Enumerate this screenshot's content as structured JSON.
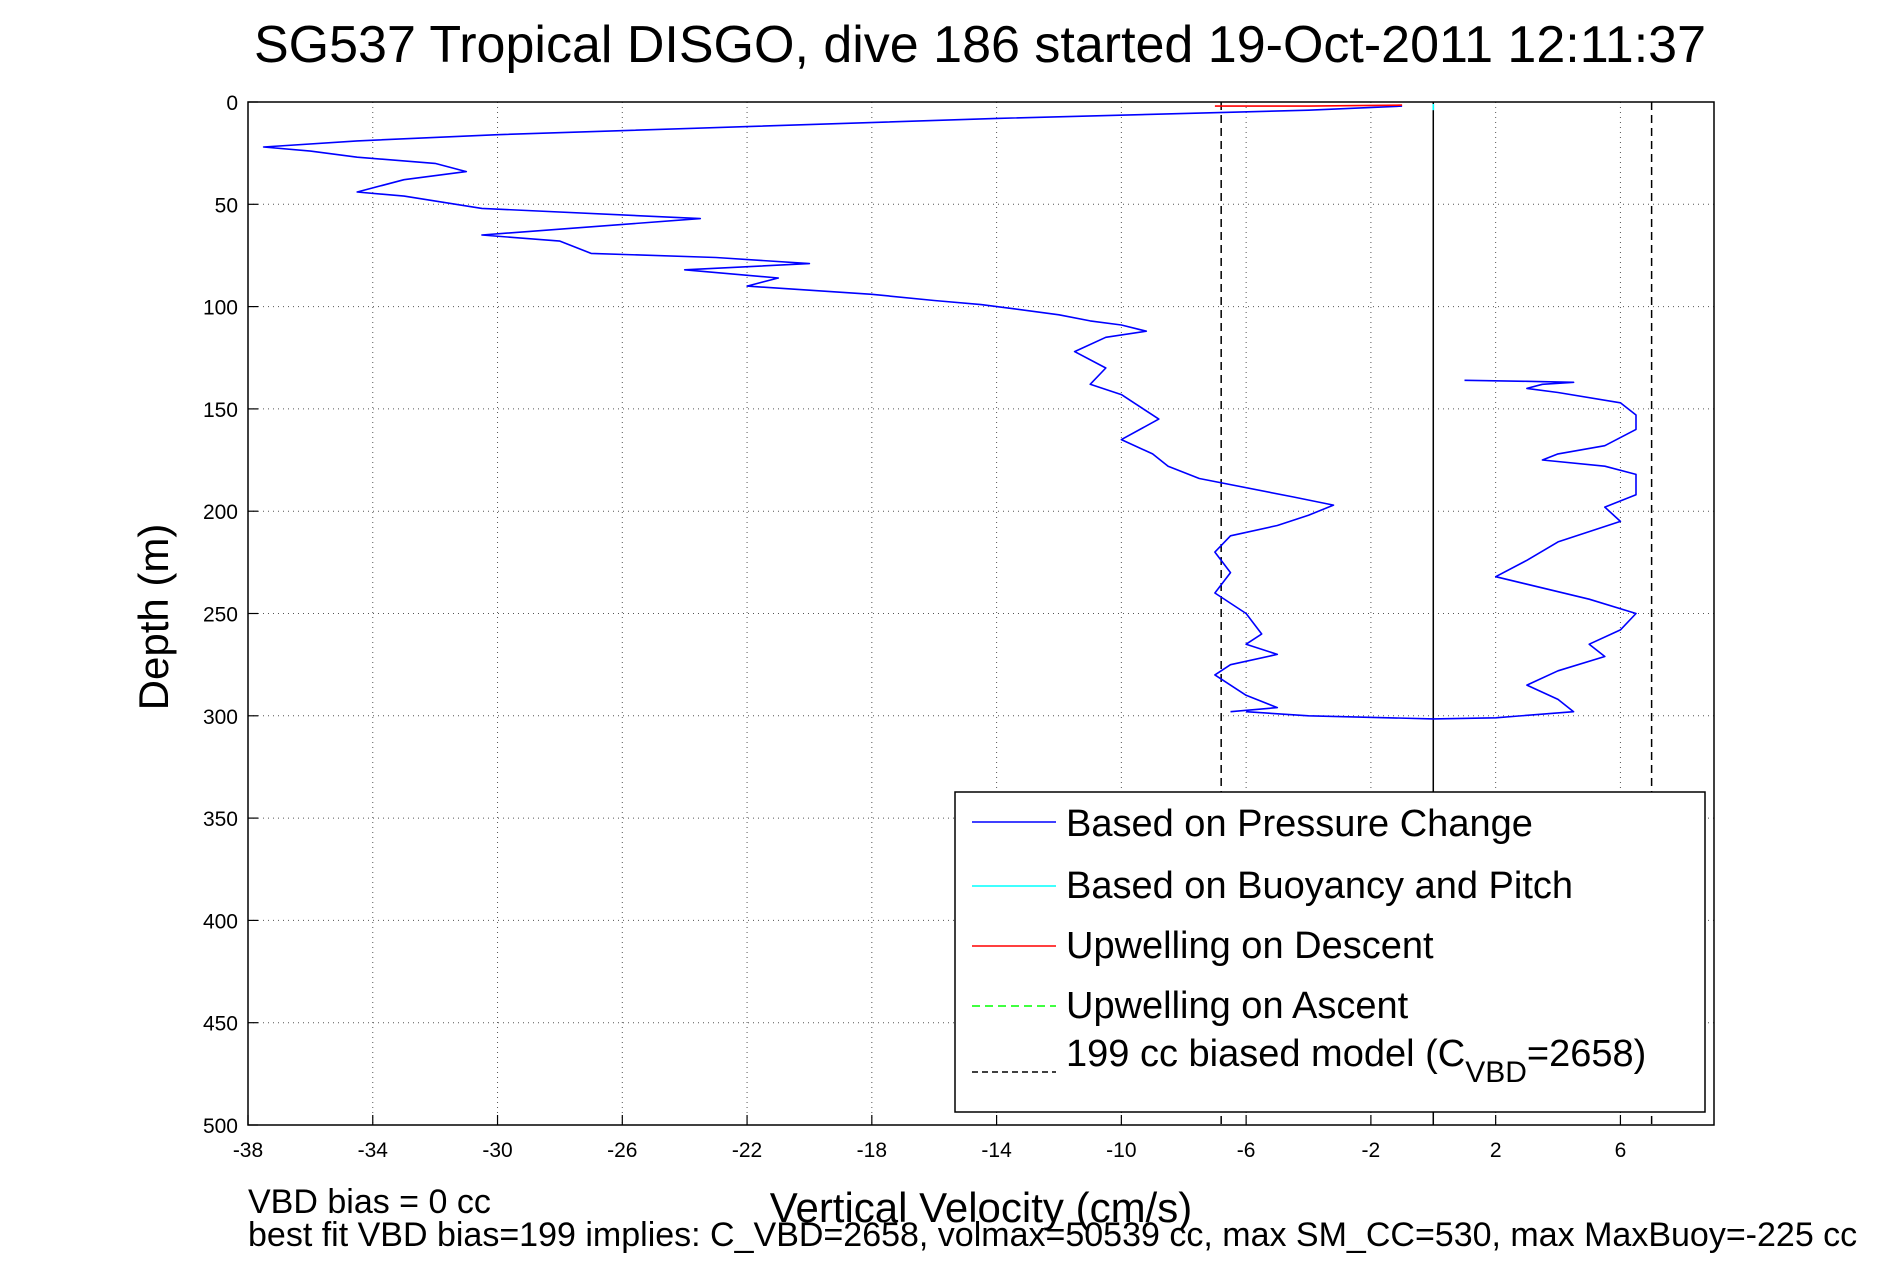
{
  "chart_data": {
    "type": "line",
    "title": "SG537 Tropical DISGO, dive 186 started 19-Oct-2011 12:11:37",
    "xlabel": "Vertical Velocity (cm/s)",
    "ylabel": "Depth (m)",
    "xlim": [
      -38,
      9
    ],
    "ylim": [
      0,
      500
    ],
    "y_reversed": true,
    "grid": true,
    "x_ticks": [
      -38,
      -34,
      -30,
      -26,
      -22,
      -18,
      -14,
      -10,
      -6,
      -2,
      2,
      6
    ],
    "y_ticks": [
      0,
      50,
      100,
      150,
      200,
      250,
      300,
      350,
      400,
      450,
      500
    ],
    "legend_position": "bottom-right",
    "colors": {
      "pressure": "#0000ff",
      "buoyancy": "#00ffff",
      "upwelling_descent": "#ff0000",
      "upwelling_ascent": "#00ff00",
      "model": "#000000"
    },
    "series": [
      {
        "name": "Based on Pressure Change",
        "style": "solid",
        "descent": {
          "x": [
            -1,
            -4,
            -9,
            -14,
            -22,
            -30,
            -34.5,
            -37.5,
            -36,
            -34.5,
            -32,
            -31,
            -33,
            -34.5,
            -33,
            -30.5,
            -23.5,
            -30.5,
            -28,
            -27,
            -23,
            -20,
            -24,
            -21,
            -22,
            -20,
            -18,
            -16,
            -14.5,
            -13.5,
            -12,
            -11,
            -10,
            -9.2,
            -10.5,
            -11.5,
            -10.5,
            -11,
            -10,
            -9.5,
            -8.8,
            -10,
            -9,
            -8.5,
            -7.5,
            -4.5,
            -3.2,
            -4,
            -5,
            -6.5,
            -7,
            -6.5,
            -7,
            -6,
            -5.5,
            -6,
            -5,
            -6.5,
            -7,
            -6,
            -5,
            -6.5
          ],
          "y": [
            2,
            4,
            6,
            8,
            12,
            16,
            19,
            22,
            24,
            27,
            30,
            34,
            38,
            44,
            46,
            52,
            57,
            65,
            68,
            74,
            76,
            79,
            82,
            86,
            90,
            92,
            94,
            97,
            99,
            101,
            104,
            107,
            109,
            112,
            115,
            122,
            130,
            138,
            143,
            148,
            155,
            165,
            172,
            178,
            184,
            193,
            197,
            202,
            207,
            212,
            220,
            230,
            240,
            250,
            260,
            265,
            270,
            275,
            280,
            290,
            296,
            298
          ]
        },
        "ascent": {
          "x": [
            -6,
            -4,
            0,
            2,
            4.5,
            4,
            3,
            4,
            5.5,
            5,
            6,
            6.5,
            5,
            2,
            3,
            4,
            6,
            5.5,
            6.5,
            6.5,
            5.5,
            3.5,
            4,
            5.5,
            6.5,
            6.5,
            6,
            4,
            3,
            3.5,
            4.5,
            3,
            1
          ],
          "y": [
            298,
            300,
            301.5,
            301,
            298,
            292,
            285,
            278,
            271,
            265,
            258,
            250,
            243,
            232,
            224,
            215,
            205,
            198,
            192,
            182,
            178,
            175,
            172,
            168,
            160,
            153,
            147,
            142,
            140,
            138,
            137,
            136.5,
            136
          ]
        }
      },
      {
        "name": "Based on Buoyancy and Pitch",
        "style": "solid",
        "x": [
          0,
          0
        ],
        "y": [
          1,
          4
        ]
      },
      {
        "name": "Upwelling on Descent",
        "style": "solid",
        "x": [
          -7,
          -4,
          -1
        ],
        "y": [
          2,
          2,
          1.5
        ]
      },
      {
        "name": "Upwelling on Ascent",
        "style": "dashed",
        "x": [],
        "y": []
      },
      {
        "name": "199 cc biased model (C",
        "name_sub": "VBD",
        "name_suffix": "=2658)",
        "style": "dashed",
        "lines_x": [
          -6.8,
          7
        ]
      }
    ],
    "reference_line_x": 0,
    "footnote_1": "VBD bias = 0 cc",
    "footnote_2": "best fit VBD bias=199 implies: C_VBD=2658, volmax=50539 cc, max SM_CC=530, max MaxBuoy=-225 cc"
  }
}
